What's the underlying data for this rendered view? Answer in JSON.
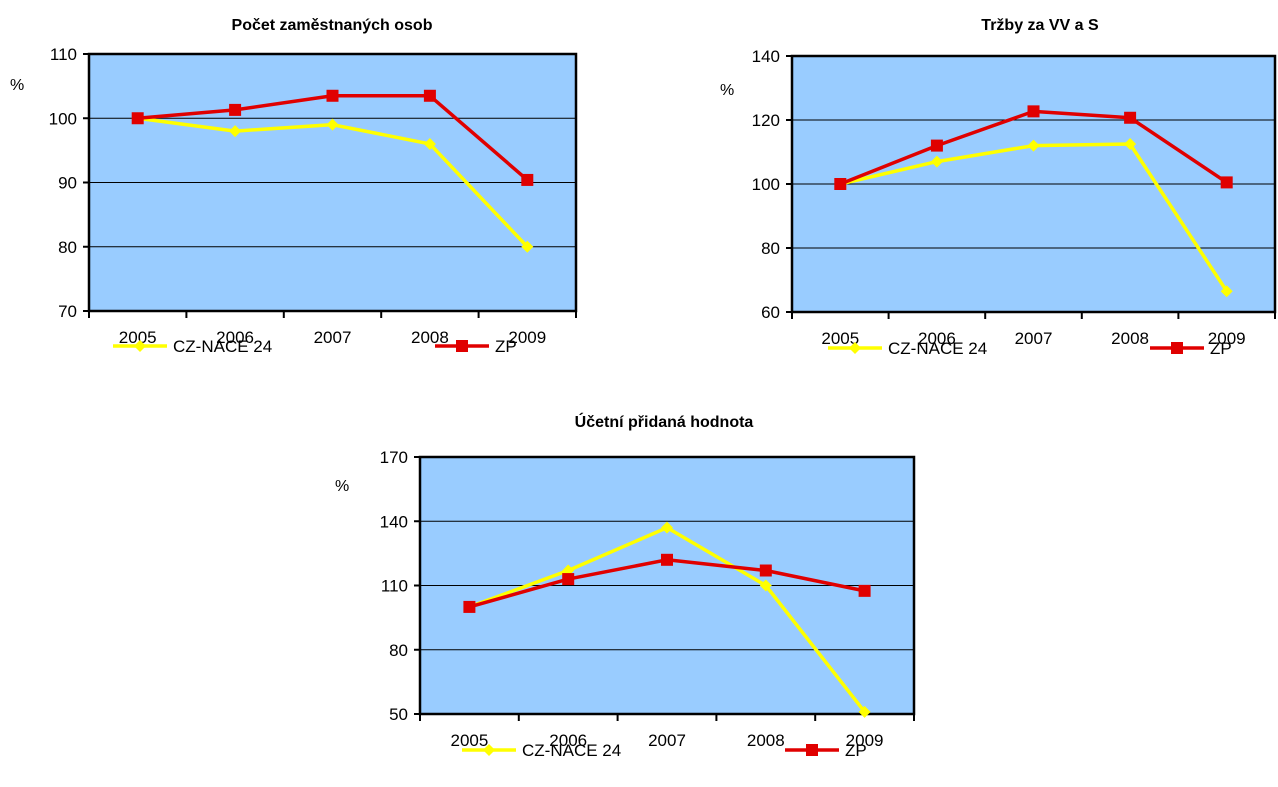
{
  "chart_data": [
    {
      "type": "line",
      "title": "Počet zaměstnaných osob",
      "ylabel": "%",
      "categories": [
        "2005",
        "2006",
        "2007",
        "2008",
        "2009"
      ],
      "ylim": [
        70,
        110
      ],
      "yticks": [
        70,
        80,
        90,
        100,
        110
      ],
      "yticks_labels": [
        "70",
        "80",
        "90",
        "100",
        "110"
      ],
      "grid": true,
      "legend_position": "bottom",
      "series": [
        {
          "name": "CZ-NACE 24",
          "color": "#ffff00",
          "marker": "diamond",
          "values": [
            100,
            98,
            99,
            96,
            80
          ]
        },
        {
          "name": "ZP",
          "color": "#e00000",
          "marker": "square",
          "values": [
            100,
            101.3,
            103.5,
            103.5,
            90.4
          ]
        }
      ]
    },
    {
      "type": "line",
      "title": "Tržby za VV a S",
      "ylabel": "%",
      "categories": [
        "2005",
        "2006",
        "2007",
        "2008",
        "2009"
      ],
      "ylim": [
        60,
        140
      ],
      "yticks": [
        60,
        80,
        100,
        120,
        140
      ],
      "yticks_labels": [
        "60",
        "80",
        "100",
        "120",
        "140"
      ],
      "grid": true,
      "legend_position": "bottom",
      "series": [
        {
          "name": "CZ-NACE 24",
          "color": "#ffff00",
          "marker": "diamond",
          "values": [
            100,
            107,
            112,
            112.5,
            66.5
          ]
        },
        {
          "name": "ZP",
          "color": "#e00000",
          "marker": "square",
          "values": [
            100,
            112,
            122.7,
            120.7,
            100.5
          ]
        }
      ]
    },
    {
      "type": "line",
      "title": "Účetní přidaná hodnota",
      "ylabel": "%",
      "categories": [
        "2005",
        "2006",
        "2007",
        "2008",
        "2009"
      ],
      "ylim": [
        50,
        170
      ],
      "yticks": [
        50,
        80,
        110,
        140,
        170
      ],
      "yticks_labels": [
        "50",
        "80",
        "110",
        "140",
        "170"
      ],
      "grid": true,
      "legend_position": "bottom",
      "series": [
        {
          "name": "CZ-NACE 24",
          "color": "#ffff00",
          "marker": "diamond",
          "values": [
            100,
            117,
            137,
            110,
            51
          ]
        },
        {
          "name": "ZP",
          "color": "#e00000",
          "marker": "square",
          "values": [
            100,
            113,
            122,
            117,
            107.5
          ]
        }
      ]
    }
  ],
  "style": {
    "plot_background": "#99ccff",
    "axis_color": "#000000"
  }
}
